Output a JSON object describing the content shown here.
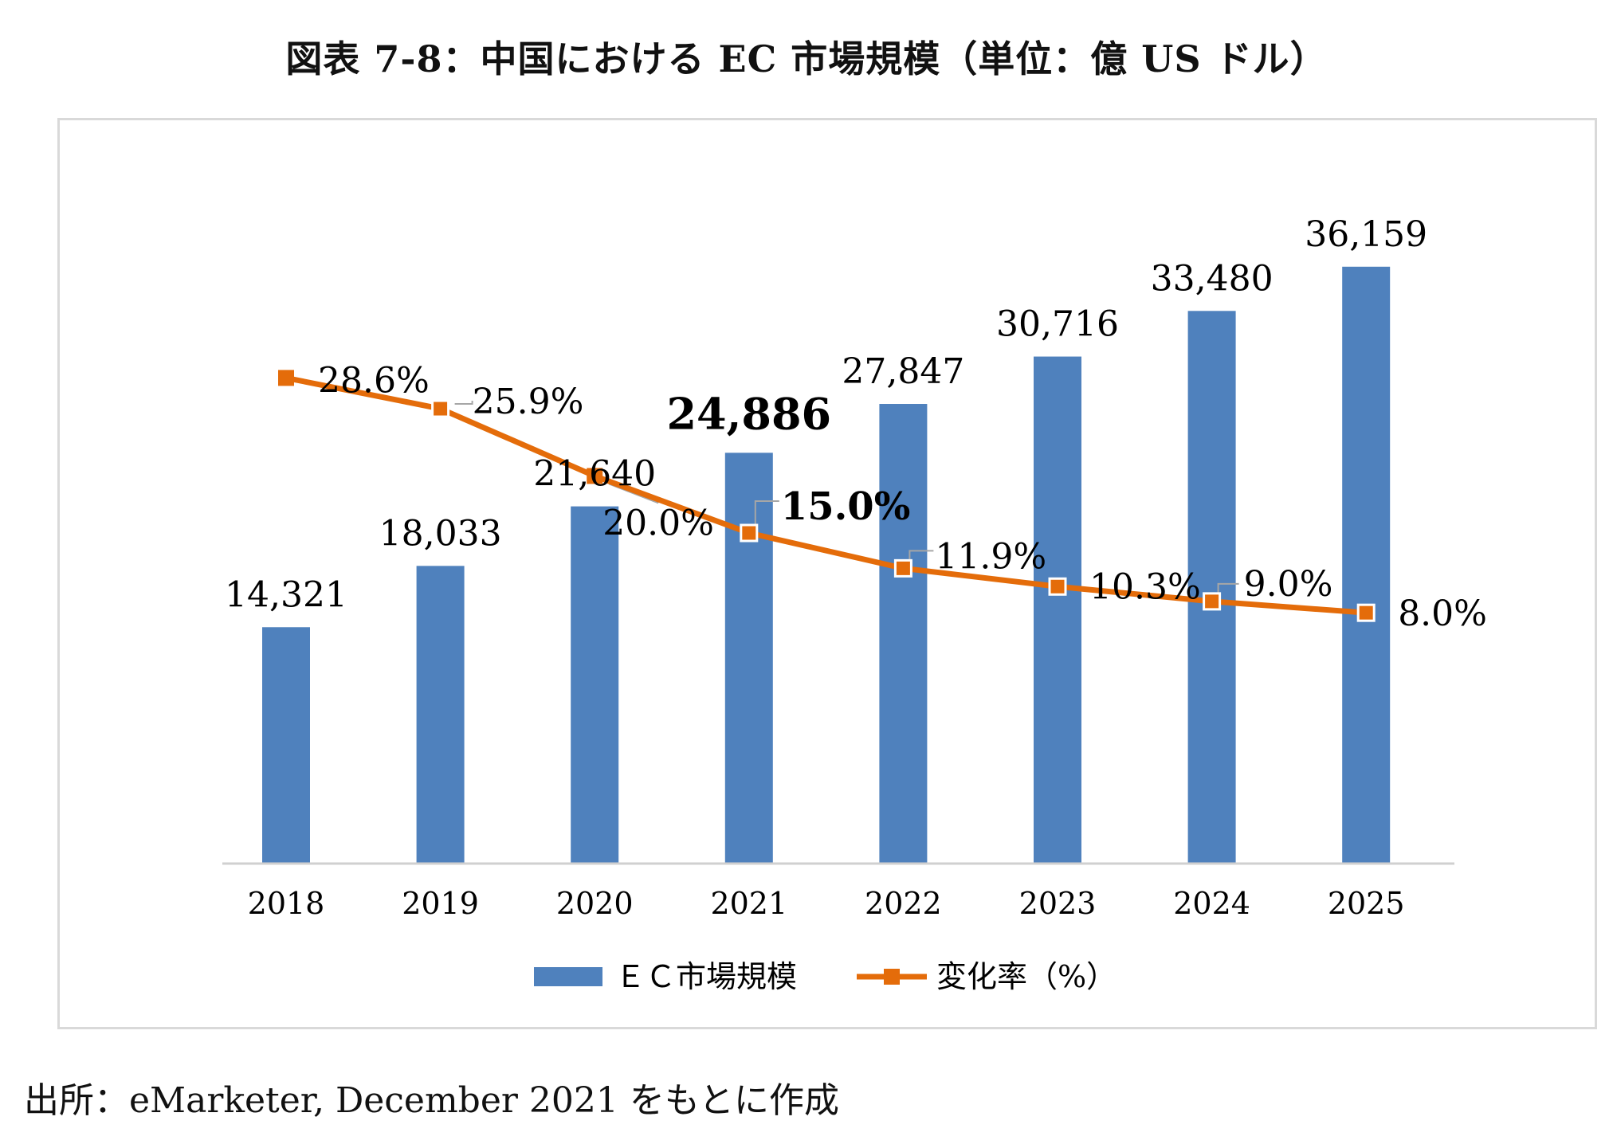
{
  "title": "図表 7-8：中国における EC 市場規模（単位：億 US ドル）",
  "source": "出所：eMarketer, December 2021 をもとに作成",
  "chart_data": {
    "type": "bar",
    "categories": [
      "2018",
      "2019",
      "2020",
      "2021",
      "2022",
      "2023",
      "2024",
      "2025"
    ],
    "series": [
      {
        "name": "ＥＣ市場規模",
        "type": "bar",
        "color": "#4f81bd",
        "values": [
          14321,
          18033,
          21640,
          24886,
          27847,
          30716,
          33480,
          36159
        ],
        "labels": [
          "14,321",
          "18,033",
          "21,640",
          "24,886",
          "27,847",
          "30,716",
          "33,480",
          "36,159"
        ]
      },
      {
        "name": "変化率（%）",
        "type": "line",
        "color": "#e46c0a",
        "values": [
          28.6,
          25.9,
          20.0,
          15.0,
          11.9,
          10.3,
          9.0,
          8.0
        ],
        "labels": [
          "28.6%",
          "25.9%",
          "20.0%",
          "15.0%",
          "11.9%",
          "10.3%",
          "9.0%",
          "8.0%"
        ]
      }
    ],
    "ylim_bar": [
      0,
      40000
    ],
    "ylim_line": [
      -14,
      34
    ],
    "grid": false,
    "legend": "bottom"
  }
}
